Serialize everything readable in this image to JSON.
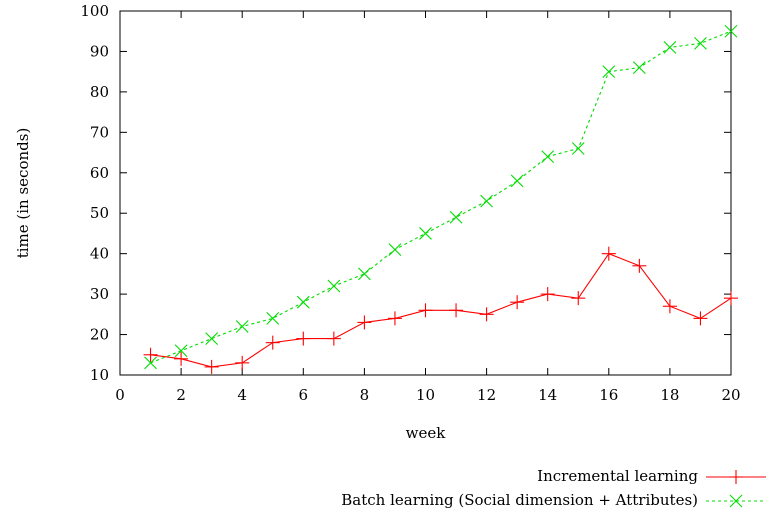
{
  "chart_data": {
    "type": "line",
    "xlabel": "week",
    "ylabel": "time (in seconds)",
    "xlim": [
      0,
      20
    ],
    "ylim": [
      10,
      100
    ],
    "xticks": [
      0,
      2,
      4,
      6,
      8,
      10,
      12,
      14,
      16,
      18,
      20
    ],
    "yticks": [
      10,
      20,
      30,
      40,
      50,
      60,
      70,
      80,
      90,
      100
    ],
    "grid": false,
    "legend_position": "bottom-right, below plot",
    "x": [
      1,
      2,
      3,
      4,
      5,
      6,
      7,
      8,
      9,
      10,
      11,
      12,
      13,
      14,
      15,
      16,
      17,
      18,
      19,
      20
    ],
    "series": [
      {
        "name": "Incremental learning",
        "color": "#ff0000",
        "marker": "plus",
        "line_style": "solid",
        "values": [
          15,
          14,
          12,
          13,
          18,
          19,
          19,
          23,
          24,
          26,
          26,
          25,
          28,
          30,
          29,
          40,
          37,
          27,
          24,
          29
        ]
      },
      {
        "name": "Batch learning (Social dimension + Attributes)",
        "color": "#00dd00",
        "marker": "cross",
        "line_style": "dashed",
        "values": [
          13,
          16,
          19,
          22,
          24,
          28,
          32,
          35,
          41,
          45,
          49,
          53,
          58,
          64,
          66,
          85,
          86,
          91,
          92,
          95
        ]
      }
    ]
  }
}
